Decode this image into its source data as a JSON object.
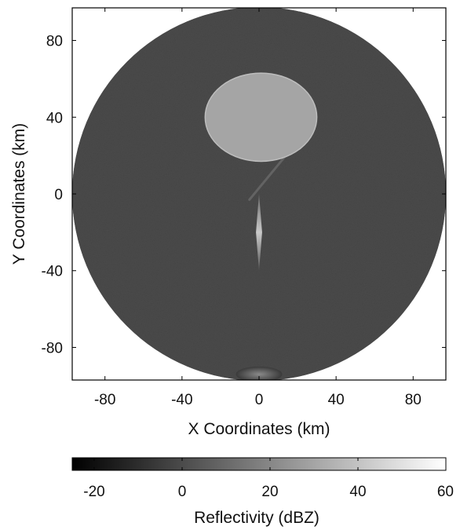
{
  "chart_data": {
    "type": "heatmap",
    "title": "",
    "xlabel": "X Coordinates (km)",
    "ylabel": "Y Coordinates (km)",
    "xlim": [
      -97,
      97
    ],
    "ylim": [
      -97,
      97
    ],
    "x_ticks": [
      -80,
      -40,
      0,
      40,
      80
    ],
    "y_ticks": [
      80,
      40,
      0,
      -40,
      -80
    ],
    "x_tick_labels": [
      "-80",
      "-40",
      "0",
      "40",
      "80"
    ],
    "y_tick_labels": [
      "80",
      "40",
      "0",
      "-40",
      "-80"
    ],
    "grid": false,
    "radar_range_km": 97,
    "background_reflectivity_dbz": 0,
    "features": [
      {
        "kind": "ellipse",
        "center_x": 1,
        "center_y": 40,
        "radius_x": 29,
        "radius_y": 23,
        "reflectivity_dbz": 30
      },
      {
        "kind": "spike",
        "from_x": 0,
        "from_y": 0,
        "to_x": 0,
        "to_y": -40,
        "reflectivity_dbz": 40
      },
      {
        "kind": "streak",
        "from_x": -5,
        "from_y": -3,
        "to_x": 18,
        "to_y": 25,
        "reflectivity_dbz": 8
      },
      {
        "kind": "edge-blob",
        "center_x": 0,
        "center_y": -94,
        "radius_x": 12,
        "radius_y": 4,
        "reflectivity_dbz": 14
      }
    ],
    "colorbar": {
      "label": "Reflectivity (dBZ)",
      "min": -25,
      "max": 60,
      "ticks": [
        -20,
        0,
        20,
        40,
        60
      ],
      "tick_labels": [
        "-20",
        "0",
        "20",
        "40",
        "60"
      ],
      "colormap": "gray",
      "color_low": "#000000",
      "color_high": "#ffffff"
    }
  }
}
